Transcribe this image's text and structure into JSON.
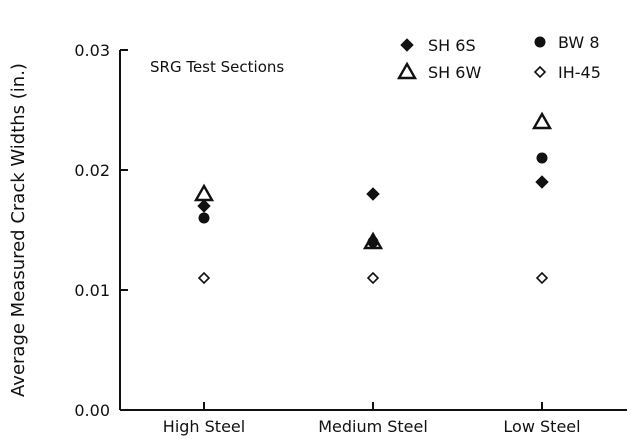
{
  "chart_data": {
    "type": "scatter",
    "title": "",
    "annotation": "SRG Test Sections",
    "xlabel": "",
    "ylabel": "Average Measured Crack Widths (in.)",
    "categories": [
      "High Steel",
      "Medium Steel",
      "Low Steel"
    ],
    "ylim": [
      0,
      0.03
    ],
    "yticks": [
      0.0,
      0.01,
      0.02,
      0.03
    ],
    "ytick_labels": [
      "0.00",
      "0.01",
      "0.02",
      "0.03"
    ],
    "grid": false,
    "legend_position": "top-right",
    "series": [
      {
        "name": "SH 6S",
        "marker": "filled-diamond",
        "values": [
          0.017,
          0.018,
          0.019
        ]
      },
      {
        "name": "BW 8",
        "marker": "filled-circle",
        "values": [
          0.016,
          0.014,
          0.021
        ]
      },
      {
        "name": "SH 6W",
        "marker": "open-triangle",
        "values": [
          0.018,
          0.014,
          0.024
        ]
      },
      {
        "name": "IH-45",
        "marker": "open-diamond",
        "values": [
          0.011,
          0.011,
          0.011
        ]
      }
    ],
    "colors": {
      "ink": "#111111",
      "background": "#ffffff"
    }
  }
}
